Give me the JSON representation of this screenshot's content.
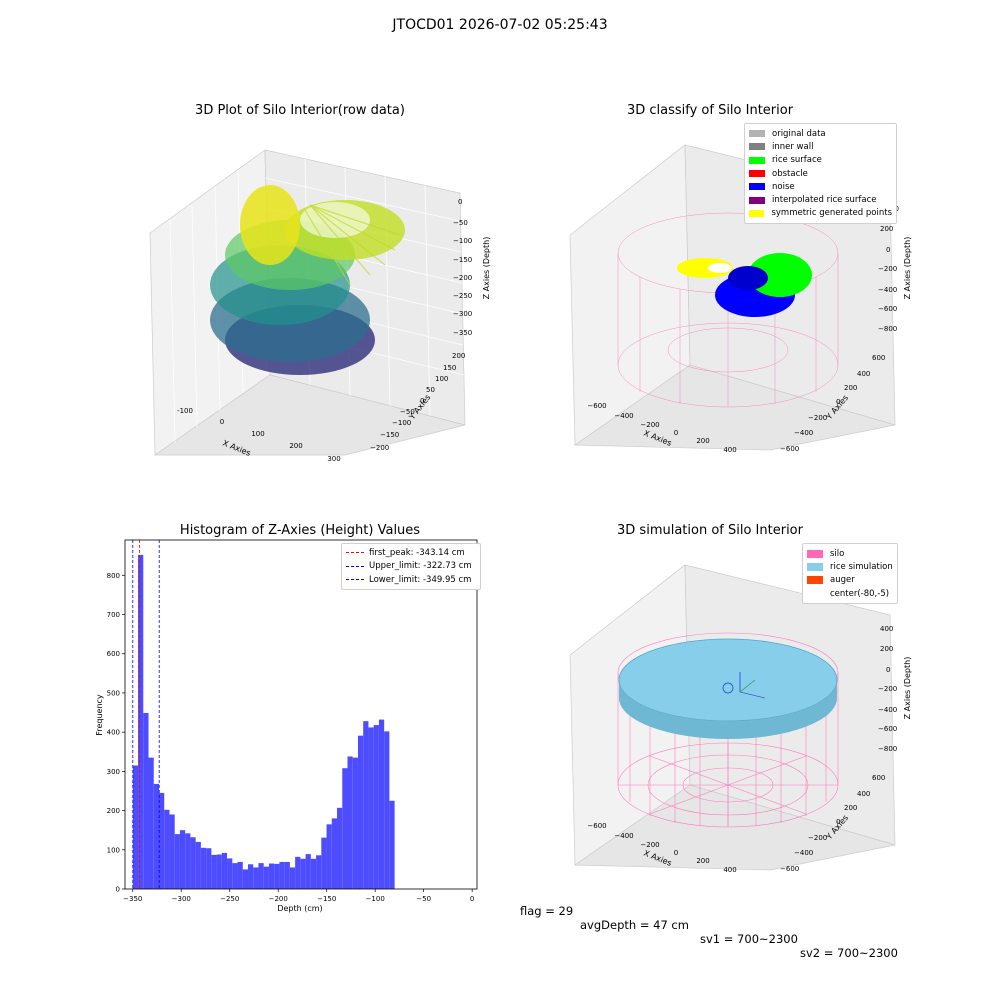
{
  "suptitle": "JTOCD01 2026-07-02 05:25:43",
  "panels": {
    "raw": {
      "title": "3D Plot of Silo Interior(row data)",
      "xlabel": "X Axies",
      "ylabel": "Y Axies",
      "zlabel": "Z Axies (Depth)",
      "xticks": [
        "-100",
        "0",
        "100",
        "200",
        "300"
      ],
      "yticks": [
        "200",
        "150",
        "100",
        "50",
        "0",
        "−50",
        "−100",
        "−150",
        "−200"
      ],
      "zticks": [
        "0",
        "−50",
        "−100",
        "−150",
        "−200",
        "−250",
        "−300",
        "−350"
      ]
    },
    "classify": {
      "title": "3D classify of Silo Interior",
      "xlabel": "X Axies",
      "ylabel": "Y Axies",
      "zlabel": "Z Axies (Depth)",
      "xticks": [
        "−600",
        "−400",
        "−200",
        "0",
        "200",
        "400"
      ],
      "yticks": [
        "600",
        "400",
        "200",
        "0",
        "−200",
        "−400",
        "−600"
      ],
      "zticks": [
        "200",
        "0",
        "−200",
        "−400",
        "−600",
        "−800"
      ],
      "zticks_partial_top": "00",
      "legend": [
        {
          "label": "original data",
          "color": "#b3b3b3"
        },
        {
          "label": "inner wall",
          "color": "#808080"
        },
        {
          "label": "rice surface",
          "color": "#00ff00"
        },
        {
          "label": "obstacle",
          "color": "#ff0000"
        },
        {
          "label": "noise",
          "color": "#0000ff"
        },
        {
          "label": "interpolated rice surface",
          "color": "#800080"
        },
        {
          "label": "symmetric generated points",
          "color": "#ffff00"
        }
      ]
    },
    "simulation": {
      "title": "3D simulation of Silo Interior",
      "xlabel": "X Axies",
      "ylabel": "Y Axies",
      "zlabel": "Z Axies (Depth)",
      "xticks": [
        "−600",
        "−400",
        "−200",
        "0",
        "200",
        "400"
      ],
      "yticks": [
        "600",
        "400",
        "200",
        "0",
        "−200",
        "−400",
        "−600"
      ],
      "zticks": [
        "400",
        "200",
        "0",
        "−200",
        "−400",
        "−600",
        "−800"
      ],
      "legend": [
        {
          "label": "silo",
          "color": "#ff69b4"
        },
        {
          "label": "rice simulation",
          "color": "#87ceeb"
        },
        {
          "label": "auger",
          "color": "#ff4500"
        },
        {
          "label": "center(-80,-5)",
          "color": "#ffffff"
        }
      ]
    }
  },
  "chart_data": {
    "type": "bar",
    "title": "Histogram of Z-Axies (Height) Values",
    "xlabel": "Depth (cm)",
    "ylabel": "Frequency",
    "xlim": [
      -358,
      5
    ],
    "ylim": [
      0,
      890
    ],
    "xticks": [
      -350,
      -300,
      -250,
      -200,
      -150,
      -100,
      -50,
      0
    ],
    "yticks": [
      0,
      100,
      200,
      300,
      400,
      500,
      600,
      700,
      800
    ],
    "bin_start": -349.95,
    "bin_width": 5.4,
    "values": [
      315,
      852,
      449,
      335,
      268,
      245,
      202,
      190,
      140,
      150,
      142,
      132,
      120,
      105,
      104,
      87,
      88,
      92,
      78,
      66,
      69,
      50,
      63,
      55,
      66,
      57,
      65,
      64,
      69,
      69,
      55,
      82,
      77,
      89,
      77,
      86,
      131,
      165,
      180,
      207,
      308,
      338,
      335,
      391,
      428,
      412,
      418,
      432,
      402,
      225
    ],
    "bar_color": "#4d4dff",
    "vlines": [
      {
        "name": "first_peak: -343.14 cm",
        "x": -343.14,
        "color": "#ff0000"
      },
      {
        "name": "Upper_limit: -322.73 cm",
        "x": -322.73,
        "color": "#0000ff"
      },
      {
        "name": "Lower_limit: -349.95 cm",
        "x": -349.95,
        "color": "#0000ff"
      }
    ]
  },
  "footer": {
    "flag": "flag = 29",
    "avg": "avgDepth = 47 cm",
    "sv1": "sv1 = 700~2300",
    "sv2": "sv2 = 700~2300"
  }
}
